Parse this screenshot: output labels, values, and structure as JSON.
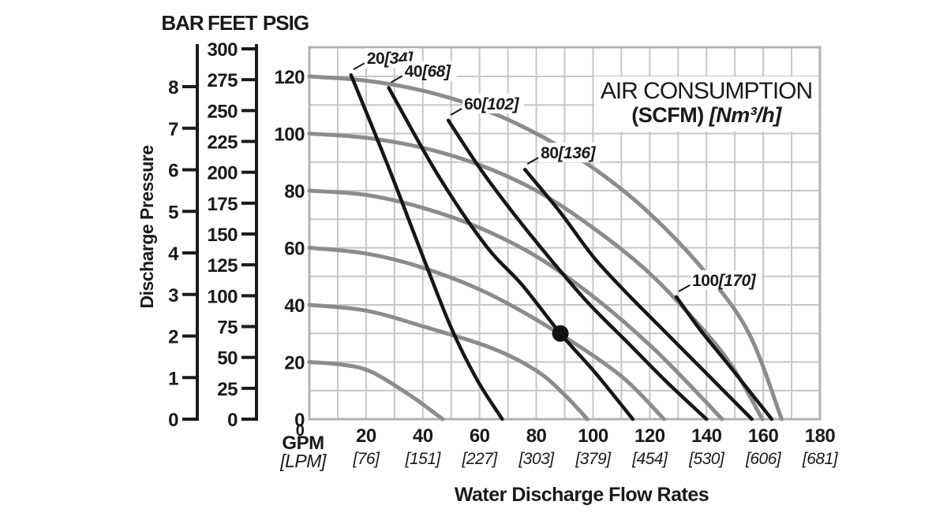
{
  "header": {
    "bar": "BAR",
    "feet": "FEET",
    "psig": "PSIG"
  },
  "y_axis_title": "Discharge Pressure",
  "x_axis_title": "Water Discharge Flow Rates",
  "x_origin": {
    "zero": "0",
    "primary": "GPM",
    "secondary": "[LPM]"
  },
  "title": {
    "line1": "AIR CONSUMPTION",
    "line2_bold": "(SCFM)",
    "line2_italic": "[Nm³/h]"
  },
  "chart_data": {
    "type": "line",
    "title": "AIR CONSUMPTION (SCFM) [Nm³/h]",
    "xlabel": "Water Discharge Flow Rates",
    "ylabel": "Discharge Pressure",
    "x_units": {
      "primary": "GPM",
      "secondary": "LPM"
    },
    "xlim": [
      0,
      180
    ],
    "ylim_psig": [
      0,
      130
    ],
    "grid": {
      "step_gpm": 10,
      "step_psig": 10,
      "grid_color": "#c6c6c6",
      "border_color": "#b2b2b2"
    },
    "y_scales": {
      "bar": {
        "label": "BAR",
        "max": 8,
        "ticks": [
          8,
          7,
          6,
          5,
          4,
          3,
          2,
          1,
          0
        ]
      },
      "feet": {
        "label": "FEET",
        "max": 300,
        "ticks": [
          300,
          275,
          250,
          225,
          200,
          175,
          150,
          125,
          100,
          75,
          50,
          25,
          0
        ]
      },
      "psig": {
        "label": "PSIG",
        "max": 120,
        "ticks": [
          120,
          100,
          80,
          60,
          40,
          20,
          0
        ]
      }
    },
    "x_ticks": [
      {
        "gpm": 20,
        "lpm": "[76]"
      },
      {
        "gpm": 40,
        "lpm": "[151]"
      },
      {
        "gpm": 60,
        "lpm": "[227]"
      },
      {
        "gpm": 80,
        "lpm": "[303]"
      },
      {
        "gpm": 100,
        "lpm": "[379]"
      },
      {
        "gpm": 120,
        "lpm": "[454]"
      },
      {
        "gpm": 140,
        "lpm": "[530]"
      },
      {
        "gpm": 160,
        "lpm": "[606]"
      },
      {
        "gpm": 180,
        "lpm": "[681]"
      }
    ],
    "pump_curves": [
      {
        "name": "120-psig",
        "color": "#8c8c8c",
        "points": [
          [
            0,
            120
          ],
          [
            20,
            118.5
          ],
          [
            40,
            115
          ],
          [
            60,
            109
          ],
          [
            80,
            100
          ],
          [
            100,
            88
          ],
          [
            120,
            72
          ],
          [
            140,
            51
          ],
          [
            155,
            30
          ],
          [
            166.5,
            0
          ]
        ]
      },
      {
        "name": "100-psig",
        "color": "#8c8c8c",
        "points": [
          [
            0,
            100
          ],
          [
            20,
            98.5
          ],
          [
            40,
            95
          ],
          [
            60,
            89
          ],
          [
            80,
            80
          ],
          [
            100,
            67
          ],
          [
            120,
            51
          ],
          [
            140,
            30
          ],
          [
            150,
            17
          ],
          [
            159.7,
            0
          ]
        ]
      },
      {
        "name": "80-psig",
        "color": "#8c8c8c",
        "points": [
          [
            0,
            80
          ],
          [
            20,
            78.5
          ],
          [
            40,
            74
          ],
          [
            60,
            67
          ],
          [
            80,
            57
          ],
          [
            100,
            43
          ],
          [
            120,
            26
          ],
          [
            135,
            11
          ],
          [
            145.5,
            0
          ]
        ]
      },
      {
        "name": "60-psig",
        "color": "#8c8c8c",
        "points": [
          [
            0,
            60
          ],
          [
            20,
            58
          ],
          [
            40,
            53
          ],
          [
            63,
            44
          ],
          [
            88,
            30
          ],
          [
            110,
            15
          ],
          [
            125,
            0
          ]
        ]
      },
      {
        "name": "40-psig",
        "color": "#8c8c8c",
        "points": [
          [
            0,
            40
          ],
          [
            20,
            38
          ],
          [
            40,
            32.5
          ],
          [
            64,
            25
          ],
          [
            80,
            17
          ],
          [
            90,
            8.5
          ],
          [
            98,
            0
          ]
        ]
      },
      {
        "name": "20-psig",
        "color": "#8c8c8c",
        "points": [
          [
            0,
            20
          ],
          [
            12,
            19
          ],
          [
            22,
            16.5
          ],
          [
            36,
            8
          ],
          [
            47,
            0
          ]
        ]
      }
    ],
    "air_curves": [
      {
        "scfm": "20",
        "nm3h": "[34]",
        "color": "#161616",
        "points": [
          [
            14.7,
            120.5
          ],
          [
            28,
            88
          ],
          [
            40,
            57
          ],
          [
            50,
            32
          ],
          [
            59,
            14
          ],
          [
            68,
            0
          ]
        ]
      },
      {
        "scfm": "40",
        "nm3h": "[68]",
        "color": "#161616",
        "points": [
          [
            28,
            116
          ],
          [
            45,
            86
          ],
          [
            62,
            61
          ],
          [
            75,
            47
          ],
          [
            88.5,
            30
          ],
          [
            101,
            16
          ],
          [
            114,
            0
          ]
        ]
      },
      {
        "scfm": "60",
        "nm3h": "[102]",
        "color": "#161616",
        "points": [
          [
            49,
            104.6
          ],
          [
            60,
            88
          ],
          [
            72,
            72
          ],
          [
            85,
            56
          ],
          [
            98,
            41
          ],
          [
            112,
            27
          ],
          [
            126,
            13
          ],
          [
            140,
            0
          ]
        ]
      },
      {
        "scfm": "80",
        "nm3h": "[136]",
        "color": "#161616",
        "points": [
          [
            76,
            87.4
          ],
          [
            88,
            73
          ],
          [
            100,
            57
          ],
          [
            112,
            44
          ],
          [
            126,
            30
          ],
          [
            141,
            15
          ],
          [
            156,
            0
          ]
        ]
      },
      {
        "scfm": "100",
        "nm3h": "[170]",
        "color": "#161616",
        "points": [
          [
            129.4,
            42.8
          ],
          [
            138,
            31
          ],
          [
            147,
            20
          ],
          [
            155,
            10
          ],
          [
            163,
            0
          ]
        ]
      }
    ],
    "operating_point": {
      "gpm": 88.5,
      "psig": 30
    }
  }
}
